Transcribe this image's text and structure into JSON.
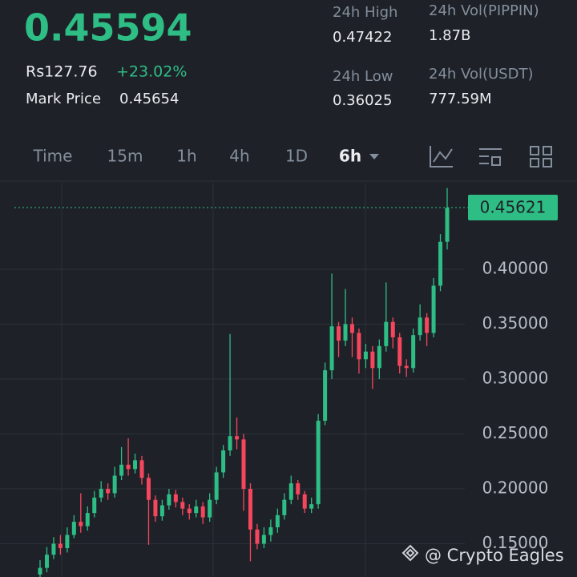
{
  "header": {
    "price": "0.45594",
    "local_price": "Rs127.76",
    "change": "+23.02%",
    "mark_price_label": "Mark Price",
    "mark_price": "0.45654",
    "stats": [
      {
        "label": "24h High",
        "value": "0.47422"
      },
      {
        "label": "24h Vol(PIPPIN)",
        "value": "1.87B"
      },
      {
        "label": "24h Low",
        "value": "0.36025"
      },
      {
        "label": "24h Vol(USDT)",
        "value": "777.59M"
      }
    ]
  },
  "tabs": {
    "items": [
      "Time",
      "15m",
      "1h",
      "4h",
      "1D",
      "6h"
    ],
    "active": 5
  },
  "watermark": "@ Crypto Eagles",
  "chart_data": {
    "type": "candlestick",
    "up_color": "#2ebd85",
    "down_color": "#f6465d",
    "open": [
      0.122,
      0.128,
      0.14,
      0.15,
      0.146,
      0.158,
      0.17,
      0.166,
      0.178,
      0.192,
      0.2,
      0.196,
      0.212,
      0.222,
      0.218,
      0.226,
      0.21,
      0.19,
      0.175,
      0.185,
      0.195,
      0.188,
      0.182,
      0.178,
      0.184,
      0.174,
      0.19,
      0.215,
      0.235,
      0.248,
      0.245,
      0.2,
      0.163,
      0.15,
      0.158,
      0.165,
      0.176,
      0.19,
      0.205,
      0.195,
      0.182,
      0.186,
      0.262,
      0.308,
      0.348,
      0.335,
      0.35,
      0.342,
      0.318,
      0.325,
      0.31,
      0.33,
      0.352,
      0.338,
      0.312,
      0.31,
      0.34,
      0.356,
      0.342,
      0.385,
      0.425
    ],
    "high": [
      0.135,
      0.147,
      0.156,
      0.158,
      0.165,
      0.176,
      0.196,
      0.184,
      0.198,
      0.207,
      0.205,
      0.22,
      0.238,
      0.246,
      0.232,
      0.23,
      0.214,
      0.194,
      0.19,
      0.2,
      0.199,
      0.192,
      0.186,
      0.19,
      0.188,
      0.196,
      0.22,
      0.24,
      0.341,
      0.265,
      0.25,
      0.205,
      0.168,
      0.165,
      0.172,
      0.182,
      0.196,
      0.212,
      0.208,
      0.198,
      0.192,
      0.268,
      0.315,
      0.396,
      0.352,
      0.382,
      0.356,
      0.346,
      0.332,
      0.33,
      0.336,
      0.388,
      0.356,
      0.342,
      0.318,
      0.346,
      0.368,
      0.36,
      0.392,
      0.432,
      0.474
    ],
    "low": [
      0.118,
      0.124,
      0.136,
      0.14,
      0.142,
      0.155,
      0.16,
      0.162,
      0.174,
      0.188,
      0.19,
      0.192,
      0.208,
      0.212,
      0.214,
      0.204,
      0.149,
      0.17,
      0.171,
      0.181,
      0.183,
      0.176,
      0.172,
      0.174,
      0.168,
      0.17,
      0.186,
      0.21,
      0.23,
      0.236,
      0.18,
      0.134,
      0.145,
      0.146,
      0.152,
      0.16,
      0.172,
      0.186,
      0.19,
      0.178,
      0.178,
      0.182,
      0.258,
      0.3,
      0.32,
      0.33,
      0.32,
      0.305,
      0.31,
      0.291,
      0.3,
      0.325,
      0.328,
      0.305,
      0.302,
      0.306,
      0.335,
      0.33,
      0.338,
      0.38,
      0.418
    ],
    "close": [
      0.128,
      0.14,
      0.15,
      0.146,
      0.158,
      0.17,
      0.166,
      0.178,
      0.192,
      0.2,
      0.196,
      0.212,
      0.222,
      0.218,
      0.226,
      0.21,
      0.19,
      0.175,
      0.185,
      0.195,
      0.188,
      0.182,
      0.178,
      0.184,
      0.174,
      0.19,
      0.215,
      0.235,
      0.248,
      0.245,
      0.2,
      0.163,
      0.15,
      0.158,
      0.165,
      0.176,
      0.19,
      0.205,
      0.195,
      0.182,
      0.186,
      0.262,
      0.308,
      0.348,
      0.335,
      0.35,
      0.342,
      0.318,
      0.325,
      0.31,
      0.33,
      0.352,
      0.338,
      0.312,
      0.31,
      0.34,
      0.356,
      0.342,
      0.385,
      0.425,
      0.456
    ],
    "last_price": {
      "value": 0.45621,
      "label": "0.45621"
    },
    "ylim": [
      0.1197,
      0.4788
    ],
    "yticks": [
      {
        "value": 0.4,
        "label": "0.40000"
      },
      {
        "value": 0.35,
        "label": "0.35000"
      },
      {
        "value": 0.3,
        "label": "0.30000"
      },
      {
        "value": 0.25,
        "label": "0.25000"
      },
      {
        "value": 0.2,
        "label": "0.20000"
      },
      {
        "value": 0.15,
        "label": "0.15000"
      }
    ],
    "grid": true
  }
}
